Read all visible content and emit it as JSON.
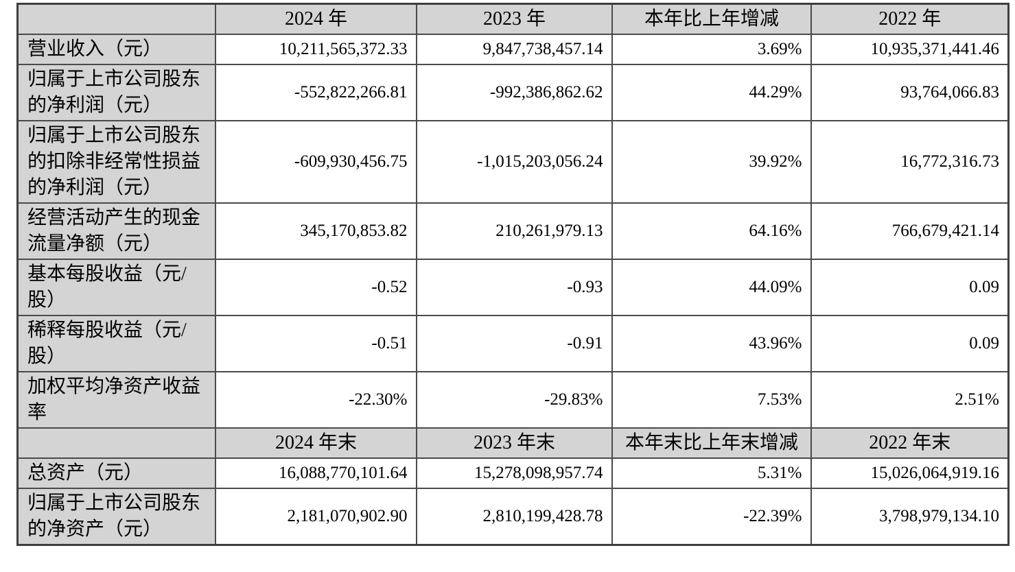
{
  "document": {
    "type": "financial-summary-table",
    "language": "zh-CN"
  },
  "colors": {
    "header_bg": "#d4d4d4",
    "label_bg": "#d4d4d4",
    "cell_bg": "#ffffff",
    "border": "#4a4a4a",
    "text": "#000000"
  },
  "table": {
    "sections": [
      {
        "header": [
          "",
          "2024 年",
          "2023 年",
          "本年比上年增减",
          "2022 年"
        ],
        "rows": [
          {
            "label": "营业收入（元）",
            "values": [
              "10,211,565,372.33",
              "9,847,738,457.14",
              "3.69%",
              "10,935,371,441.46"
            ]
          },
          {
            "label": "归属于上市公司股东的净利润（元）",
            "values": [
              "-552,822,266.81",
              "-992,386,862.62",
              "44.29%",
              "93,764,066.83"
            ]
          },
          {
            "label": "归属于上市公司股东的扣除非经常性损益的净利润（元）",
            "values": [
              "-609,930,456.75",
              "-1,015,203,056.24",
              "39.92%",
              "16,772,316.73"
            ]
          },
          {
            "label": "经营活动产生的现金流量净额（元）",
            "values": [
              "345,170,853.82",
              "210,261,979.13",
              "64.16%",
              "766,679,421.14"
            ]
          },
          {
            "label": "基本每股收益（元/股）",
            "values": [
              "-0.52",
              "-0.93",
              "44.09%",
              "0.09"
            ]
          },
          {
            "label": "稀释每股收益（元/股）",
            "values": [
              "-0.51",
              "-0.91",
              "43.96%",
              "0.09"
            ]
          },
          {
            "label": "加权平均净资产收益率",
            "values": [
              "-22.30%",
              "-29.83%",
              "7.53%",
              "2.51%"
            ]
          }
        ]
      },
      {
        "header": [
          "",
          "2024 年末",
          "2023 年末",
          "本年末比上年末增减",
          "2022 年末"
        ],
        "rows": [
          {
            "label": "总资产（元）",
            "values": [
              "16,088,770,101.64",
              "15,278,098,957.74",
              "5.31%",
              "15,026,064,919.16"
            ]
          },
          {
            "label": "归属于上市公司股东的净资产（元）",
            "values": [
              "2,181,070,902.90",
              "2,810,199,428.78",
              "-22.39%",
              "3,798,979,134.10"
            ]
          }
        ]
      }
    ]
  }
}
